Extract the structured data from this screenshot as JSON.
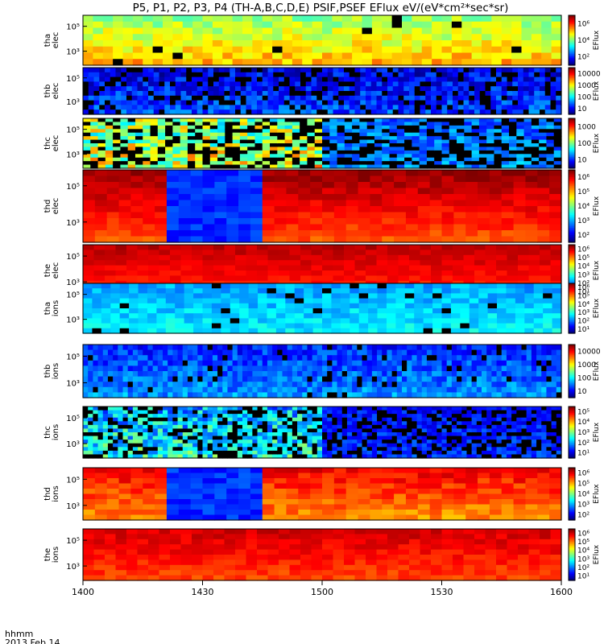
{
  "title": "P5, P1, P2, P3, P4 (TH-A,B,C,D,E) PSIF,PSEF EFlux eV/(eV*cm²*sec*sr)",
  "time_axis": {
    "ticks": [
      "1400",
      "1430",
      "1500",
      "1530",
      "1600"
    ],
    "unit_label": "hhmm",
    "date_label": "2013 Feb 14"
  },
  "colorbar_label": "EFlux",
  "chart_data": [
    {
      "type": "heatmap",
      "ylabel": [
        "tha",
        "elec"
      ],
      "yticks": [
        "10⁵",
        "10³"
      ],
      "zlabel": "EFlux",
      "zticks": [
        "10⁶",
        "10⁴",
        "10²"
      ]
    },
    {
      "type": "heatmap",
      "ylabel": [
        "thb",
        "elec"
      ],
      "yticks": [
        "10⁵",
        "10³"
      ],
      "zlabel": "EFlux",
      "zticks": [
        "10000",
        "1000",
        "100",
        "10"
      ]
    },
    {
      "type": "heatmap",
      "ylabel": [
        "thc",
        "elec"
      ],
      "yticks": [
        "10⁵",
        "10³"
      ],
      "zlabel": "EFlux",
      "zticks": [
        "1000",
        "100",
        "10"
      ]
    },
    {
      "type": "heatmap",
      "ylabel": [
        "thd",
        "elec"
      ],
      "yticks": [
        "10⁵",
        "10³"
      ],
      "zlabel": "EFlux",
      "zticks": [
        "10⁶",
        "10⁵",
        "10⁴",
        "10³",
        "10²"
      ]
    },
    {
      "type": "heatmap",
      "ylabel": [
        "the",
        "elec"
      ],
      "yticks": [
        "10⁵",
        "10³"
      ],
      "zlabel": "EFlux",
      "zticks": [
        "10⁶",
        "10⁵",
        "10⁴",
        "10³",
        "10²",
        "10¹"
      ]
    },
    {
      "type": "heatmap",
      "ylabel": [
        "tha",
        "ions"
      ],
      "yticks": [
        "10⁵",
        "10³"
      ],
      "zlabel": "EFlux",
      "zticks": [
        "10⁶",
        "10⁵",
        "10⁴",
        "10³",
        "10²",
        "10¹"
      ]
    },
    {
      "type": "heatmap",
      "ylabel": [
        "thb",
        "ions"
      ],
      "yticks": [
        "10⁵",
        "10³"
      ],
      "zlabel": "EFlux",
      "zticks": [
        "10000",
        "1000",
        "100",
        "10"
      ]
    },
    {
      "type": "heatmap",
      "ylabel": [
        "thc",
        "ions"
      ],
      "yticks": [
        "10⁵",
        "10³"
      ],
      "zlabel": "EFlux",
      "zticks": [
        "10⁵",
        "10⁴",
        "10³",
        "10²",
        "10¹"
      ]
    },
    {
      "type": "heatmap",
      "ylabel": [
        "thd",
        "ions"
      ],
      "yticks": [
        "10⁵",
        "10³"
      ],
      "zlabel": "EFlux",
      "zticks": [
        "10⁶",
        "10⁵",
        "10⁴",
        "10³",
        "10²"
      ]
    },
    {
      "type": "heatmap",
      "ylabel": [
        "the",
        "ions"
      ],
      "yticks": [
        "10⁵",
        "10³"
      ],
      "zlabel": "EFlux",
      "zticks": [
        "10⁶",
        "10⁵",
        "10⁴",
        "10³",
        "10²",
        "10¹"
      ]
    }
  ]
}
